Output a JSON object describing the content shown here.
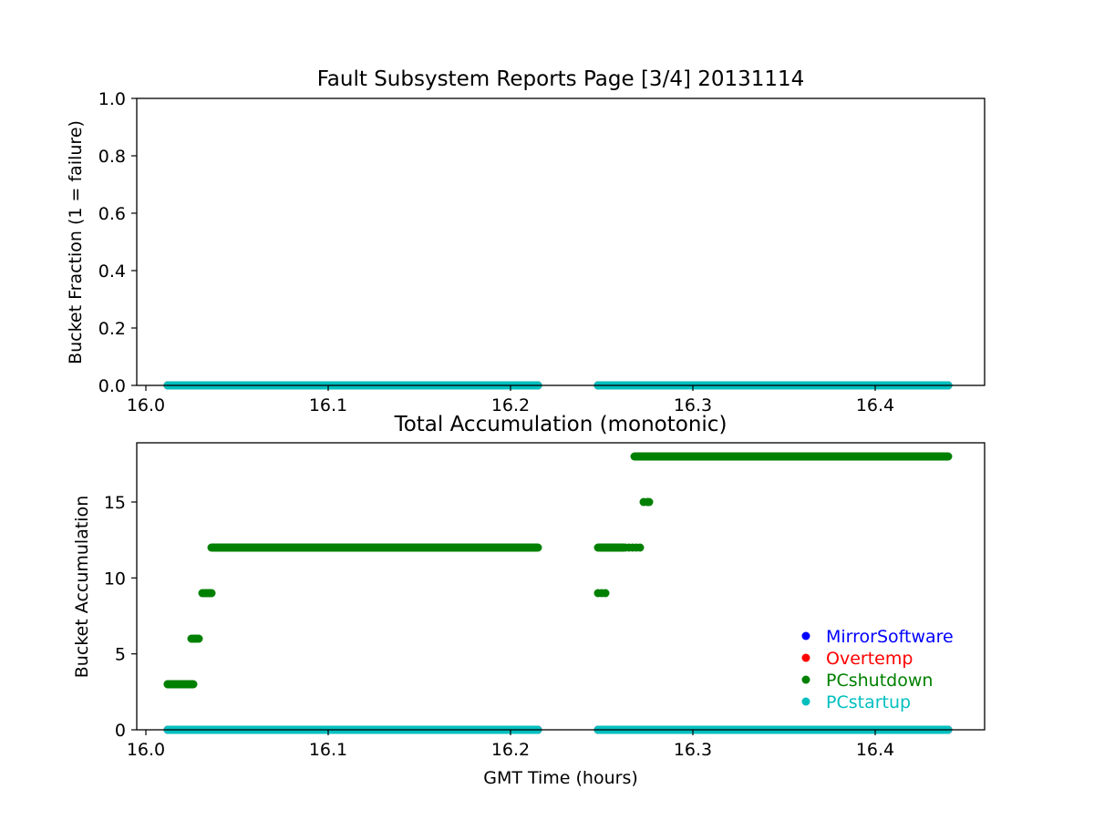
{
  "chart_data": [
    {
      "type": "scatter",
      "title": "Fault Subsystem Reports Page [3/4] 20131114",
      "xlabel": "",
      "ylabel": "Bucket Fraction (1 = failure)",
      "xlim": [
        15.995,
        16.46
      ],
      "ylim": [
        0.0,
        1.0
      ],
      "xticks": [
        16.0,
        16.1,
        16.2,
        16.3,
        16.4
      ],
      "xtick_labels": [
        "16.0",
        "16.1",
        "16.2",
        "16.3",
        "16.4"
      ],
      "yticks": [
        0.0,
        0.2,
        0.4,
        0.6,
        0.8,
        1.0
      ],
      "ytick_labels": [
        "0.0",
        "0.2",
        "0.4",
        "0.6",
        "0.8",
        "1.0"
      ],
      "grid": false,
      "series": [
        {
          "name": "MirrorSoftware",
          "color": "#0000ff",
          "segments": [
            [
              16.012,
              16.215,
              0
            ],
            [
              16.248,
              16.44,
              0
            ]
          ]
        },
        {
          "name": "Overtemp",
          "color": "#ff0000",
          "segments": [
            [
              16.012,
              16.215,
              0
            ],
            [
              16.248,
              16.44,
              0
            ]
          ]
        },
        {
          "name": "PCshutdown",
          "color": "#008000",
          "segments": [
            [
              16.012,
              16.215,
              0
            ],
            [
              16.248,
              16.44,
              0
            ]
          ]
        },
        {
          "name": "PCstartup",
          "color": "#00bfbf",
          "segments": [
            [
              16.012,
              16.215,
              0
            ],
            [
              16.248,
              16.44,
              0
            ]
          ]
        }
      ]
    },
    {
      "type": "scatter",
      "title": "Total Accumulation (monotonic)",
      "xlabel": "GMT Time (hours)",
      "ylabel": "Bucket Accumulation",
      "xlim": [
        15.995,
        16.46
      ],
      "ylim": [
        0,
        18.9
      ],
      "xticks": [
        16.0,
        16.1,
        16.2,
        16.3,
        16.4
      ],
      "xtick_labels": [
        "16.0",
        "16.1",
        "16.2",
        "16.3",
        "16.4"
      ],
      "yticks": [
        0,
        5,
        10,
        15
      ],
      "ytick_labels": [
        "0",
        "5",
        "10",
        "15"
      ],
      "grid": false,
      "legend": {
        "placement": "lower-right"
      },
      "series": [
        {
          "name": "MirrorSoftware",
          "color": "#0000ff",
          "segments": [
            [
              16.012,
              16.215,
              0
            ],
            [
              16.248,
              16.44,
              0
            ]
          ]
        },
        {
          "name": "Overtemp",
          "color": "#ff0000",
          "segments": [
            [
              16.012,
              16.215,
              0
            ],
            [
              16.248,
              16.44,
              0
            ]
          ]
        },
        {
          "name": "PCshutdown",
          "color": "#008000",
          "segments": [
            [
              16.012,
              16.026,
              3
            ],
            [
              16.036,
              16.215,
              12
            ],
            [
              16.248,
              16.262,
              12
            ],
            [
              16.268,
              16.44,
              18
            ]
          ],
          "points": [
            [
              16.012,
              3
            ],
            [
              16.014,
              3
            ],
            [
              16.016,
              3
            ],
            [
              16.018,
              3
            ],
            [
              16.02,
              3
            ],
            [
              16.022,
              3
            ],
            [
              16.024,
              3
            ],
            [
              16.025,
              6
            ],
            [
              16.026,
              6
            ],
            [
              16.027,
              6
            ],
            [
              16.028,
              6
            ],
            [
              16.029,
              6
            ],
            [
              16.031,
              9
            ],
            [
              16.032,
              9
            ],
            [
              16.033,
              9
            ],
            [
              16.034,
              9
            ],
            [
              16.035,
              9
            ],
            [
              16.036,
              9
            ],
            [
              16.038,
              12
            ],
            [
              16.04,
              12
            ],
            [
              16.248,
              9
            ],
            [
              16.25,
              9
            ],
            [
              16.252,
              9
            ],
            [
              16.255,
              12
            ],
            [
              16.257,
              12
            ],
            [
              16.259,
              12
            ],
            [
              16.261,
              12
            ],
            [
              16.263,
              12
            ],
            [
              16.265,
              12
            ],
            [
              16.267,
              12
            ],
            [
              16.269,
              12
            ],
            [
              16.271,
              12
            ],
            [
              16.273,
              15
            ],
            [
              16.275,
              15
            ],
            [
              16.276,
              15
            ],
            [
              16.278,
              18
            ],
            [
              16.28,
              18
            ]
          ]
        },
        {
          "name": "PCstartup",
          "color": "#00bfbf",
          "segments": [
            [
              16.012,
              16.215,
              0
            ],
            [
              16.248,
              16.44,
              0
            ]
          ]
        }
      ]
    }
  ]
}
